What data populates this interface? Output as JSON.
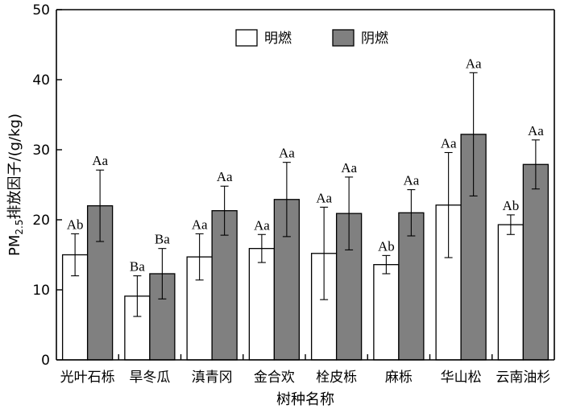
{
  "chart_data": {
    "type": "bar",
    "ylabel_prefix": "PM",
    "ylabel_sub": "2.5",
    "ylabel_suffix": "排放因子/(g/kg)",
    "xlabel": "树种名称",
    "ylim": [
      0,
      50
    ],
    "yticks": [
      0,
      10,
      20,
      30,
      40,
      50
    ],
    "legend_position": "top-center",
    "categories": [
      "光叶石栎",
      "旱冬瓜",
      "滇青冈",
      "金合欢",
      "栓皮栎",
      "麻栎",
      "华山松",
      "云南油杉"
    ],
    "series": [
      {
        "name": "明燃",
        "color": "#ffffff",
        "values": [
          15.0,
          9.1,
          14.7,
          15.9,
          15.2,
          13.6,
          22.1,
          19.3
        ],
        "error": [
          3.0,
          2.9,
          3.3,
          2.0,
          6.6,
          1.3,
          7.5,
          1.4
        ],
        "labels": [
          "Ab",
          "Ba",
          "Aa",
          "Aa",
          "Aa",
          "Ab",
          "Aa",
          "Ab"
        ]
      },
      {
        "name": "阴燃",
        "color": "#808080",
        "values": [
          22.0,
          12.3,
          21.3,
          22.9,
          20.9,
          21.0,
          32.2,
          27.9
        ],
        "error": [
          5.1,
          3.6,
          3.5,
          5.3,
          5.2,
          3.3,
          8.8,
          3.5
        ],
        "labels": [
          "Aa",
          "Ba",
          "Aa",
          "Aa",
          "Aa",
          "Aa",
          "Aa",
          "Aa"
        ]
      }
    ]
  }
}
